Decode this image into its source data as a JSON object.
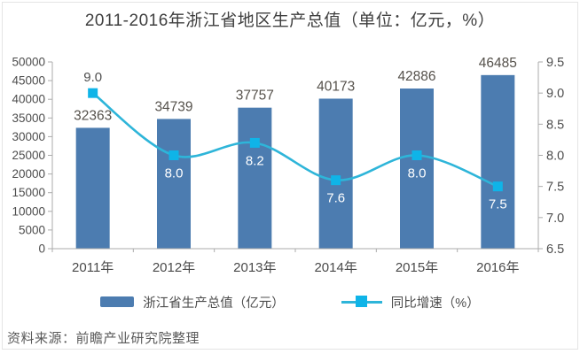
{
  "title": "2011-2016年浙江省地区生产总值（单位：亿元，%）",
  "source_note": "资料来源：前瞻产业研究院整理",
  "colors": {
    "bar": "#4C7CB0",
    "line": "#2EB5D9",
    "marker": "#0FB4E8",
    "axis": "#ABABAB",
    "tick_text": "#4D4D4D",
    "x_label_text": "#4A4A4A",
    "bar_label": "#55514B",
    "title_text": "#3F3F3F",
    "frame": "#E4E4E4"
  },
  "chart_data": {
    "type": "bar+line",
    "title": "2011-2016年浙江省地区生产总值（单位：亿元，%）",
    "categories": [
      "2011年",
      "2012年",
      "2013年",
      "2014年",
      "2015年",
      "2016年"
    ],
    "series": [
      {
        "name": "浙江省生产总值（亿元）",
        "type": "bar",
        "axis": "left",
        "values": [
          32363,
          34739,
          37757,
          40173,
          42886,
          46485
        ],
        "labels": [
          "32363",
          "34739",
          "37757",
          "40173",
          "42886",
          "46485"
        ]
      },
      {
        "name": "同比增速（%）",
        "type": "line",
        "axis": "right",
        "values": [
          9.0,
          8.0,
          8.2,
          7.6,
          8.0,
          7.5
        ],
        "labels": [
          "9.0",
          "8.0",
          "8.2",
          "7.6",
          "8.0",
          "7.5"
        ],
        "label_positions": [
          "above",
          "below",
          "below",
          "below",
          "below",
          "below"
        ],
        "label_colors": [
          "#4F4F4F",
          "#FFFFFF",
          "#FFFFFF",
          "#FFFFFF",
          "#FFFFFF",
          "#FFFFFF"
        ]
      }
    ],
    "left_axis": {
      "min": 0,
      "max": 50000,
      "step": 5000,
      "ticks": [
        "0",
        "5000",
        "10000",
        "15000",
        "20000",
        "25000",
        "30000",
        "35000",
        "40000",
        "45000",
        "50000"
      ]
    },
    "right_axis": {
      "min": 6.5,
      "max": 9.5,
      "step": 0.5,
      "ticks": [
        "6.5",
        "7.0",
        "7.5",
        "8.0",
        "8.5",
        "9.0",
        "9.5"
      ]
    },
    "grid": false,
    "legend_position": "bottom"
  }
}
